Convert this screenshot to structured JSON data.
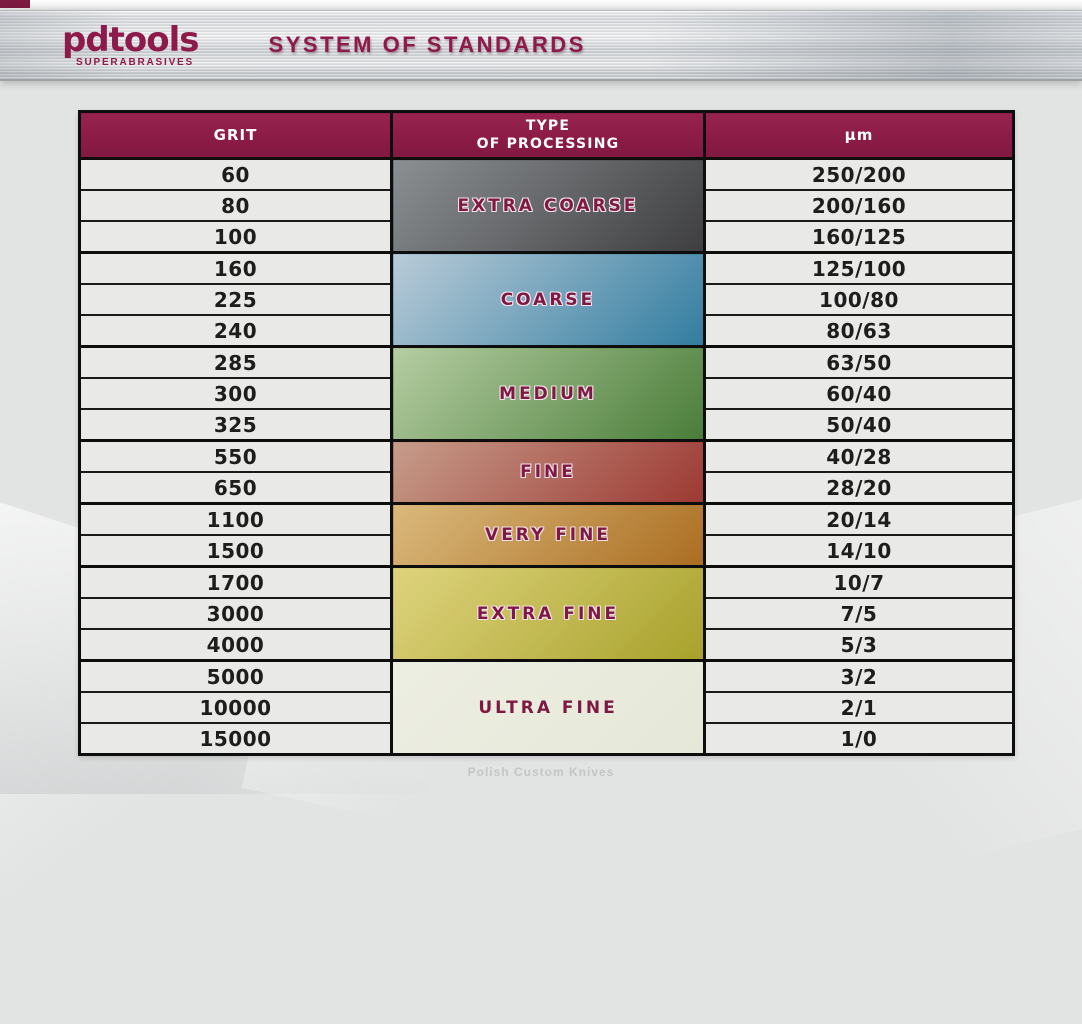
{
  "page": {
    "brand": "pdtools",
    "brand_sub": "SUPERABRASIVES",
    "title": "SYSTEM OF STANDARDS",
    "watermark": "Polish Custom Knives"
  },
  "colors": {
    "maroon": "#8a1b45",
    "header_text": "#ffffff",
    "cell_bg": "#e9e9e7",
    "cell_text": "#1d1d1d",
    "border_dark": "#0d0d0d"
  },
  "table": {
    "columns": {
      "grit": "GRIT",
      "type_line1": "TYPE",
      "type_line2": "OF PROCESSING",
      "um": "μm"
    },
    "groups": [
      {
        "label": "EXTRA COARSE",
        "gradient_from": "#8b8f92",
        "gradient_to": "#3e3e40",
        "outlined": true,
        "rows": [
          {
            "grit": "60",
            "um": "250/200"
          },
          {
            "grit": "80",
            "um": "200/160"
          },
          {
            "grit": "100",
            "um": "160/125"
          }
        ]
      },
      {
        "label": "COARSE",
        "gradient_from": "#b9cbd8",
        "gradient_to": "#327da0",
        "outlined": true,
        "rows": [
          {
            "grit": "160",
            "um": "125/100"
          },
          {
            "grit": "225",
            "um": "100/80"
          },
          {
            "grit": "240",
            "um": "80/63"
          }
        ]
      },
      {
        "label": "MEDIUM",
        "gradient_from": "#b5cda2",
        "gradient_to": "#4a7d39",
        "outlined": true,
        "rows": [
          {
            "grit": "285",
            "um": "63/50"
          },
          {
            "grit": "300",
            "um": "60/40"
          },
          {
            "grit": "325",
            "um": "50/40"
          }
        ]
      },
      {
        "label": "FINE",
        "gradient_from": "#c69c8a",
        "gradient_to": "#9d3933",
        "outlined": true,
        "rows": [
          {
            "grit": "550",
            "um": "40/28"
          },
          {
            "grit": "650",
            "um": "28/20"
          }
        ]
      },
      {
        "label": "VERY FINE",
        "gradient_from": "#dab97c",
        "gradient_to": "#ab6e22",
        "outlined": true,
        "rows": [
          {
            "grit": "1100",
            "um": "20/14"
          },
          {
            "grit": "1500",
            "um": "14/10"
          }
        ]
      },
      {
        "label": "EXTRA FINE",
        "gradient_from": "#ded37d",
        "gradient_to": "#a8a22c",
        "outlined": true,
        "rows": [
          {
            "grit": "1700",
            "um": "10/7"
          },
          {
            "grit": "3000",
            "um": "7/5"
          },
          {
            "grit": "4000",
            "um": "5/3"
          }
        ]
      },
      {
        "label": "ULTRA FINE",
        "gradient_from": "#edeee2",
        "gradient_to": "#e5e8d8",
        "outlined": false,
        "rows": [
          {
            "grit": "5000",
            "um": "3/2"
          },
          {
            "grit": "10000",
            "um": "2/1"
          },
          {
            "grit": "15000",
            "um": "1/0"
          }
        ]
      }
    ]
  }
}
